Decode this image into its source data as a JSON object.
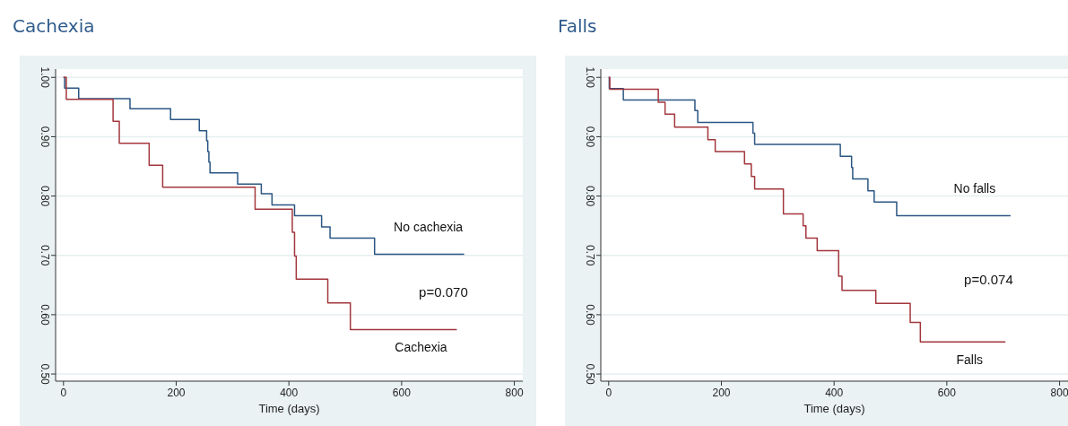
{
  "chart_data": [
    {
      "type": "step",
      "title": "Cachexia",
      "xlabel": "Time (days)",
      "xlim": [
        -14,
        815
      ],
      "xticks": [
        0,
        200,
        400,
        600,
        800
      ],
      "ylim": [
        0.488,
        1.014
      ],
      "yticks": [
        {
          "value": 0.5,
          "label": "0.50"
        },
        {
          "value": 0.6,
          "label": "0.60"
        },
        {
          "value": 0.7,
          "label": "0.70"
        },
        {
          "value": 0.8,
          "label": "0.80"
        },
        {
          "value": 0.9,
          "label": "0.90"
        },
        {
          "value": 1,
          "label": "1.00"
        }
      ],
      "grid": "y",
      "legend": false,
      "annotations": [
        "p=0.070"
      ],
      "series": [
        {
          "name": "No cachexia",
          "color": "#2b5683",
          "x": [
            0,
            2,
            27,
            118,
            190,
            241,
            254,
            256,
            258,
            260,
            309,
            351,
            370,
            410,
            458,
            473,
            552,
            711
          ],
          "values": [
            1,
            0.982,
            0.964,
            0.947,
            0.929,
            0.91,
            0.893,
            0.875,
            0.857,
            0.839,
            0.82,
            0.804,
            0.785,
            0.767,
            0.748,
            0.729,
            0.702,
            0.702
          ]
        },
        {
          "name": "Cachexia",
          "color": "#a3363c",
          "x": [
            0,
            5,
            88,
            99,
            152,
            176,
            340,
            406,
            410,
            413,
            469,
            509,
            698
          ],
          "values": [
            1,
            0.963,
            0.926,
            0.889,
            0.852,
            0.815,
            0.778,
            0.739,
            0.699,
            0.66,
            0.62,
            0.575,
            0.575
          ]
        }
      ]
    },
    {
      "type": "step",
      "title": "Falls",
      "xlabel": "Time (days)",
      "xlim": [
        -14,
        815
      ],
      "xticks": [
        0,
        200,
        400,
        600,
        800
      ],
      "ylim": [
        0.488,
        1.014
      ],
      "yticks": [
        {
          "value": 0.5,
          "label": "0.50"
        },
        {
          "value": 0.6,
          "label": "0.60"
        },
        {
          "value": 0.7,
          "label": "0.70"
        },
        {
          "value": 0.8,
          "label": "0.80"
        },
        {
          "value": 0.9,
          "label": "0.90"
        },
        {
          "value": 1,
          "label": "1.00"
        }
      ],
      "grid": "y",
      "legend": false,
      "annotations": [
        "p=0.074"
      ],
      "series": [
        {
          "name": "No falls",
          "color": "#2b5683",
          "x": [
            0,
            1,
            26,
            153,
            158,
            256,
            259,
            411,
            431,
            433,
            460,
            471,
            511,
            713
          ],
          "values": [
            1,
            0.981,
            0.962,
            0.944,
            0.924,
            0.906,
            0.887,
            0.867,
            0.848,
            0.829,
            0.809,
            0.79,
            0.767,
            0.767
          ]
        },
        {
          "name": "Falls",
          "color": "#a3363c",
          "x": [
            0,
            2,
            88,
            100,
            117,
            176,
            189,
            241,
            253,
            259,
            310,
            345,
            350,
            370,
            408,
            414,
            474,
            535,
            553,
            704
          ],
          "values": [
            1,
            0.98,
            0.958,
            0.938,
            0.916,
            0.895,
            0.875,
            0.854,
            0.833,
            0.812,
            0.77,
            0.75,
            0.729,
            0.708,
            0.665,
            0.641,
            0.619,
            0.587,
            0.554,
            0.554
          ]
        }
      ]
    }
  ]
}
